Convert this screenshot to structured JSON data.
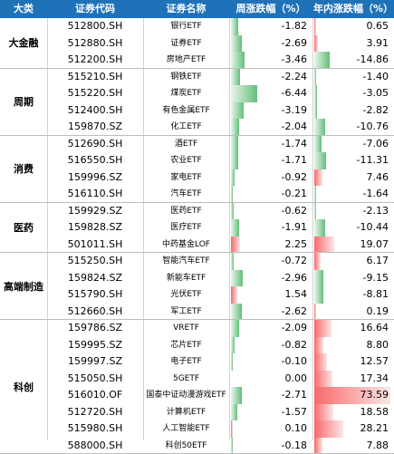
{
  "headers": [
    "大类",
    "证券代码",
    "证券名称",
    "周涨跌幅（%）",
    "年内涨跌幅（%）"
  ],
  "colors": {
    "header_bg": "#1f72b8",
    "neg_bar": "#63be7b",
    "pos_bar": "#f8696b"
  },
  "groups": [
    {
      "name": "大金融",
      "rows": [
        {
          "code": "512800.SH",
          "name": "银行ETF",
          "week": "-1.82",
          "ytd": "0.65"
        },
        {
          "code": "512880.SH",
          "name": "证券ETF",
          "week": "-2.69",
          "ytd": "3.91"
        },
        {
          "code": "512200.SH",
          "name": "房地产ETF",
          "week": "-3.46",
          "ytd": "-14.86"
        }
      ]
    },
    {
      "name": "周期",
      "rows": [
        {
          "code": "515210.SH",
          "name": "钢铁ETF",
          "week": "-2.24",
          "ytd": "-1.40"
        },
        {
          "code": "515220.SH",
          "name": "煤炭ETF",
          "week": "-6.44",
          "ytd": "-3.05"
        },
        {
          "code": "512400.SH",
          "name": "有色金属ETF",
          "week": "-3.19",
          "ytd": "-2.82"
        },
        {
          "code": "159870.SZ",
          "name": "化工ETF",
          "week": "-2.04",
          "ytd": "-10.76"
        }
      ]
    },
    {
      "name": "消费",
      "rows": [
        {
          "code": "512690.SH",
          "name": "酒ETF",
          "week": "-1.74",
          "ytd": "-7.06"
        },
        {
          "code": "516550.SH",
          "name": "农业ETF",
          "week": "-1.71",
          "ytd": "-11.31"
        },
        {
          "code": "159996.SZ",
          "name": "家电ETF",
          "week": "-0.92",
          "ytd": "7.46"
        },
        {
          "code": "516110.SH",
          "name": "汽车ETF",
          "week": "-0.21",
          "ytd": "-1.64"
        }
      ]
    },
    {
      "name": "医药",
      "rows": [
        {
          "code": "159929.SZ",
          "name": "医药ETF",
          "week": "-0.62",
          "ytd": "-2.13"
        },
        {
          "code": "159828.SZ",
          "name": "医疗ETF",
          "week": "-1.91",
          "ytd": "-10.44"
        },
        {
          "code": "501011.SH",
          "name": "中药基金LOF",
          "week": "2.25",
          "ytd": "19.07"
        }
      ]
    },
    {
      "name": "高端制造",
      "rows": [
        {
          "code": "515250.SH",
          "name": "智能汽车ETF",
          "week": "-0.72",
          "ytd": "6.17"
        },
        {
          "code": "159824.SZ",
          "name": "新能车ETF",
          "week": "-2.96",
          "ytd": "-9.15"
        },
        {
          "code": "515790.SH",
          "name": "光伏ETF",
          "week": "1.54",
          "ytd": "-8.81"
        },
        {
          "code": "512660.SH",
          "name": "军工ETF",
          "week": "-2.62",
          "ytd": "0.19"
        }
      ]
    },
    {
      "name": "科创",
      "rows": [
        {
          "code": "159786.SZ",
          "name": "VRETF",
          "week": "-2.09",
          "ytd": "16.64"
        },
        {
          "code": "159995.SZ",
          "name": "芯片ETF",
          "week": "-0.82",
          "ytd": "8.80"
        },
        {
          "code": "159997.SZ",
          "name": "电子ETF",
          "week": "-0.10",
          "ytd": "12.57"
        },
        {
          "code": "515050.SH",
          "name": "5GETF",
          "week": "0.00",
          "ytd": "17.34"
        },
        {
          "code": "516010.OF",
          "name": "国泰中证动漫游戏ETF",
          "week": "-2.71",
          "ytd": "73.59"
        },
        {
          "code": "512720.SH",
          "name": "计算机ETF",
          "week": "-1.57",
          "ytd": "18.58"
        },
        {
          "code": "515980.SH",
          "name": "人工智能ETF",
          "week": "0.10",
          "ytd": "28.21"
        },
        {
          "code": "588000.SH",
          "name": "科创50ETF",
          "week": "-0.18",
          "ytd": "7.88"
        }
      ]
    }
  ]
}
